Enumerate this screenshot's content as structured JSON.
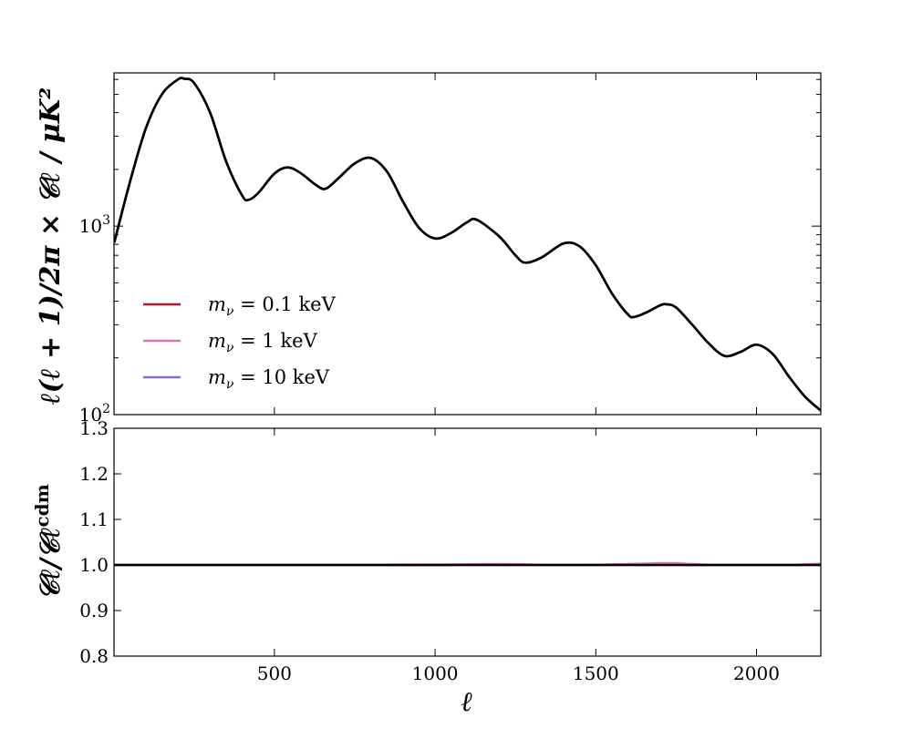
{
  "chart_data": [
    {
      "type": "line",
      "panel": "top",
      "ylabel": "ℓ(ℓ + 1)/2π × 𝒞ℓ  /  μK²",
      "yscale": "log",
      "xlim": [
        1,
        2200
      ],
      "ylim": [
        100,
        6500
      ],
      "yticks": [
        {
          "value": 100,
          "label_base": "10",
          "label_exp": "2"
        },
        {
          "value": 1000,
          "label_base": "10",
          "label_exp": "3"
        }
      ],
      "x": [
        2,
        50,
        100,
        150,
        200,
        220,
        250,
        300,
        350,
        400,
        420,
        450,
        500,
        540,
        580,
        630,
        660,
        700,
        750,
        800,
        850,
        900,
        950,
        1000,
        1050,
        1100,
        1130,
        1200,
        1250,
        1280,
        1330,
        1400,
        1450,
        1500,
        1550,
        1600,
        1620,
        1660,
        1700,
        1720,
        1750,
        1800,
        1850,
        1900,
        1950,
        2000,
        2050,
        2100,
        2150,
        2200
      ],
      "y": [
        820,
        1700,
        3300,
        5000,
        6000,
        6050,
        5750,
        4000,
        2200,
        1450,
        1380,
        1500,
        1900,
        2050,
        1920,
        1650,
        1580,
        1800,
        2150,
        2300,
        1950,
        1350,
        980,
        860,
        920,
        1050,
        1080,
        880,
        700,
        640,
        680,
        810,
        780,
        620,
        440,
        340,
        330,
        350,
        380,
        385,
        370,
        300,
        240,
        205,
        215,
        235,
        210,
        160,
        125,
        105
      ],
      "series": [
        {
          "name": "mν = 0.1 keV",
          "legend_prefix": "m",
          "legend_sub": "ν",
          "legend_suffix": " = 0.1 keV",
          "color": "#b2182b"
        },
        {
          "name": "mν = 1 keV",
          "legend_prefix": "m",
          "legend_sub": "ν",
          "legend_suffix": " = 1 keV",
          "color": "#de77ae"
        },
        {
          "name": "mν = 10 keV",
          "legend_prefix": "m",
          "legend_sub": "ν",
          "legend_suffix": " = 10 keV",
          "color": "#8c6bd1"
        },
        {
          "name": "",
          "color": "#000000"
        }
      ],
      "legend_position": "lower-left"
    },
    {
      "type": "line",
      "panel": "bottom",
      "ylabel": "𝒞ℓ/𝒞ℓ^cdm",
      "xlabel": "ℓ",
      "xlim": [
        1,
        2200
      ],
      "ylim": [
        0.8,
        1.3
      ],
      "xticks": [
        500,
        1000,
        1500,
        2000
      ],
      "xtick_labels": [
        "500",
        "1000",
        "1500",
        "2000"
      ],
      "yticks": [
        0.8,
        0.9,
        1.0,
        1.1,
        1.2,
        1.3
      ],
      "ytick_labels": [
        "0.8",
        "0.9",
        "1.0",
        "1.1",
        "1.2",
        "1.3"
      ],
      "x": [
        2,
        500,
        1000,
        1200,
        1400,
        1600,
        1700,
        1750,
        1800,
        1900,
        2000,
        2100,
        2200
      ],
      "series": [
        {
          "name": "mν = 0.1 keV",
          "color": "#b2182b",
          "values": [
            1.0,
            1.0,
            1.0,
            1.001,
            1.0,
            1.001,
            1.001,
            1.001,
            1.0,
            1.0,
            1.0,
            1.0,
            1.001
          ]
        },
        {
          "name": "mν = 1 keV",
          "color": "#de77ae",
          "values": [
            1.0,
            1.0,
            1.001,
            1.002,
            1.0,
            1.002,
            1.004,
            1.004,
            1.002,
            1.0,
            1.0,
            1.0,
            1.003
          ]
        },
        {
          "name": "mν = 10 keV",
          "color": "#8c6bd1",
          "values": [
            1.0,
            1.0,
            1.0,
            1.0,
            1.0,
            1.0,
            1.0,
            1.0,
            1.0,
            1.0,
            1.0,
            1.0,
            1.0
          ]
        },
        {
          "name": "",
          "color": "#000000",
          "values": [
            1.0,
            1.0,
            1.0,
            1.0,
            1.0,
            1.0,
            1.0,
            1.0,
            1.0,
            1.0,
            1.0,
            1.0,
            1.0
          ]
        }
      ]
    }
  ]
}
